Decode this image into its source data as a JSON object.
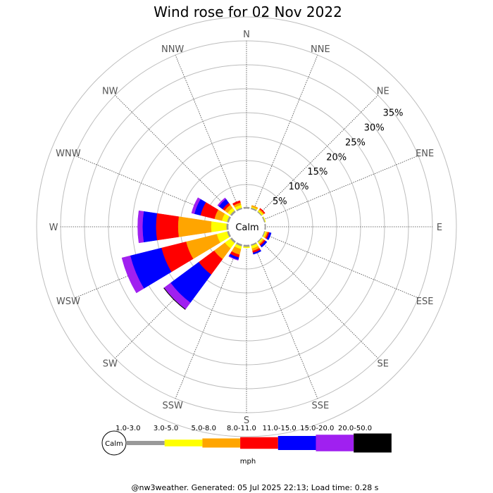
{
  "chart_data": {
    "type": "polar-bar",
    "title": "Wind rose for 02 Nov 2022",
    "calm_label": "Calm",
    "directions": [
      "N",
      "NNE",
      "NE",
      "ENE",
      "E",
      "ESE",
      "SE",
      "SSE",
      "S",
      "SSW",
      "SW",
      "WSW",
      "W",
      "WNW",
      "NW",
      "NNW"
    ],
    "ring_labels": [
      "5%",
      "10%",
      "15%",
      "20%",
      "25%",
      "30%",
      "35%"
    ],
    "rmax_percent": 35,
    "legend": {
      "calm": "Calm",
      "unit": "mph",
      "bins": [
        {
          "label": "1.0-3.0",
          "color": "#999999"
        },
        {
          "label": "3.0-5.0",
          "color": "#ffff00"
        },
        {
          "label": "5.0-8.0",
          "color": "#ffa500"
        },
        {
          "label": "8.0-11.0",
          "color": "#ff0000"
        },
        {
          "label": "11.0-15.0",
          "color": "#0000ff"
        },
        {
          "label": "15.0-20.0",
          "color": "#a020f0"
        },
        {
          "label": "20.0-50.0",
          "color": "#000000"
        }
      ]
    },
    "series": [
      {
        "direction": "N",
        "values": [
          0.3,
          0.0,
          0.0,
          0.0,
          0.0,
          0.0,
          0.0
        ]
      },
      {
        "direction": "NNE",
        "values": [
          0.3,
          0.2,
          0.3,
          0.0,
          0.0,
          0.0,
          0.0
        ]
      },
      {
        "direction": "NE",
        "values": [
          0.2,
          0.3,
          0.3,
          0.2,
          0.0,
          0.0,
          0.0
        ]
      },
      {
        "direction": "ENE",
        "values": [
          0.2,
          0.1,
          0.0,
          0.0,
          0.0,
          0.0,
          0.0
        ]
      },
      {
        "direction": "E",
        "values": [
          0.2,
          0.0,
          0.0,
          0.0,
          0.0,
          0.0,
          0.0
        ]
      },
      {
        "direction": "ESE",
        "values": [
          0.2,
          0.3,
          0.3,
          0.3,
          0.4,
          0.0,
          0.0
        ]
      },
      {
        "direction": "SE",
        "values": [
          0.2,
          0.3,
          0.3,
          0.3,
          0.4,
          0.0,
          0.0
        ]
      },
      {
        "direction": "SSE",
        "values": [
          0.3,
          0.6,
          0.5,
          0.4,
          0.3,
          0.0,
          0.0
        ]
      },
      {
        "direction": "S",
        "values": [
          0.4,
          0.2,
          0.0,
          0.0,
          0.0,
          0.0,
          0.0
        ]
      },
      {
        "direction": "SSW",
        "values": [
          0.4,
          0.6,
          1.2,
          0.6,
          0.5,
          0.1,
          0.0
        ]
      },
      {
        "direction": "SW",
        "values": [
          0.4,
          1.4,
          2.8,
          4.0,
          7.3,
          1.7,
          0.1
        ]
      },
      {
        "direction": "WSW",
        "values": [
          0.4,
          2.2,
          6.6,
          5.3,
          6.7,
          1.8,
          0.0
        ]
      },
      {
        "direction": "W",
        "values": [
          0.4,
          3.2,
          6.9,
          4.6,
          2.8,
          1.0,
          0.0
        ]
      },
      {
        "direction": "WNW",
        "values": [
          0.4,
          1.1,
          1.6,
          3.0,
          1.3,
          0.6,
          0.0
        ]
      },
      {
        "direction": "NW",
        "values": [
          0.4,
          0.7,
          0.8,
          0.5,
          1.0,
          0.3,
          0.0
        ]
      },
      {
        "direction": "NNW",
        "values": [
          0.3,
          0.6,
          0.5,
          0.4,
          0.0,
          0.0,
          0.0
        ]
      }
    ]
  },
  "footer": "@nw3weather. Generated: 05 Jul 2025 22:13; Load time: 0.28 s"
}
